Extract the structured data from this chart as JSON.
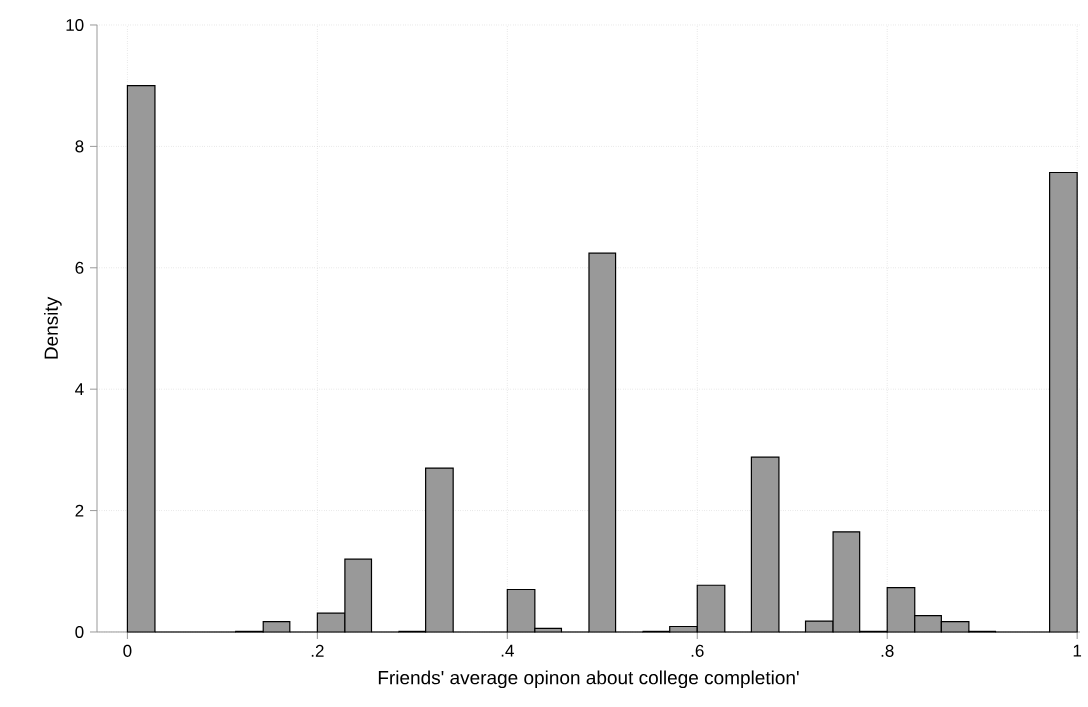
{
  "chart_data": {
    "type": "histogram",
    "xlabel": "Friends' average opinon about college completion'",
    "ylabel": "Density",
    "bins": [
      0,
      0.029,
      0.114,
      0.143,
      0.171,
      0.2,
      0.229,
      0.257,
      0.286,
      0.314,
      0.343,
      0.4,
      0.429,
      0.457,
      0.486,
      0.514,
      0.543,
      0.571,
      0.6,
      0.629,
      0.657,
      0.686,
      0.714,
      0.743,
      0.771,
      0.8,
      0.829,
      0.857,
      0.886,
      0.914,
      0.971,
      1
    ],
    "values": [
      9.0,
      0,
      0.01,
      0.17,
      0,
      0.31,
      1.2,
      0,
      0.01,
      2.7,
      0,
      0.7,
      0.06,
      0,
      6.24,
      0,
      0.01,
      0.09,
      0.77,
      0,
      2.88,
      0,
      0.18,
      1.65,
      0.01,
      0.73,
      0.27,
      0.17,
      0.01,
      0,
      7.57
    ],
    "color": "#999999",
    "xlim": [
      -0.032,
      1.003
    ],
    "ylim": [
      0,
      10
    ],
    "xticks": [
      0,
      {
        "value": 0.2,
        "label": ".2"
      },
      {
        "value": 0.4,
        "label": ".4"
      },
      {
        "value": 0.6,
        "label": ".6"
      },
      {
        "value": 0.8,
        "label": ".8"
      },
      1
    ],
    "yticks": [
      0,
      2,
      4,
      6,
      8,
      10
    ],
    "grid": true
  }
}
